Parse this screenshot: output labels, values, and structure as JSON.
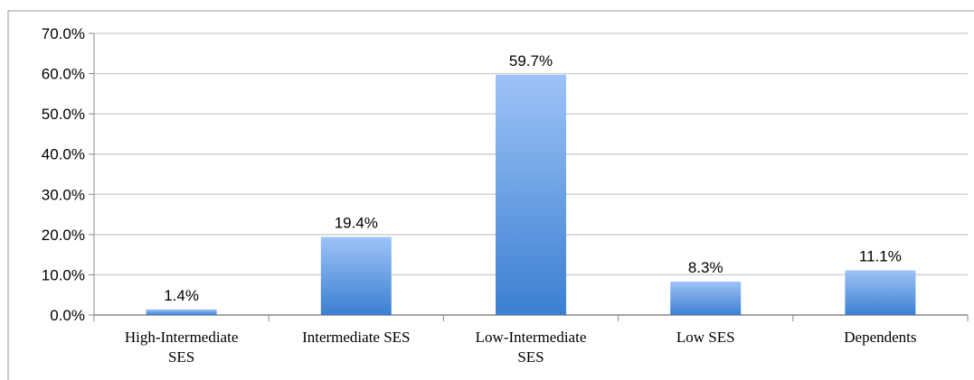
{
  "chart_data": {
    "type": "bar",
    "title": "",
    "xlabel": "",
    "ylabel": "",
    "categories": [
      "High-Intermediate SES",
      "Intermediate SES",
      "Low-Intermediate SES",
      "Low SES",
      "Dependents"
    ],
    "category_lines": [
      [
        "High-Intermediate",
        "SES"
      ],
      [
        "Intermediate SES"
      ],
      [
        "Low-Intermediate",
        "SES"
      ],
      [
        "Low SES"
      ],
      [
        "Dependents"
      ]
    ],
    "values": [
      1.4,
      19.4,
      59.7,
      8.3,
      11.1
    ],
    "data_labels": [
      "1.4%",
      "19.4%",
      "59.7%",
      "8.3%",
      "11.1%"
    ],
    "ylim": [
      0,
      70
    ],
    "yticks": [
      0,
      10,
      20,
      30,
      40,
      50,
      60,
      70
    ],
    "ytick_labels": [
      "0.0%",
      "10.0%",
      "20.0%",
      "30.0%",
      "40.0%",
      "50.0%",
      "60.0%",
      "70.0%"
    ],
    "grid": true,
    "legend": "none",
    "colors": {
      "bar_top": "#9dc3f7",
      "bar_bottom": "#3b7fd1",
      "grid": "#d0d0d0",
      "axis": "#888888",
      "frame": "#9a9a9a"
    }
  }
}
